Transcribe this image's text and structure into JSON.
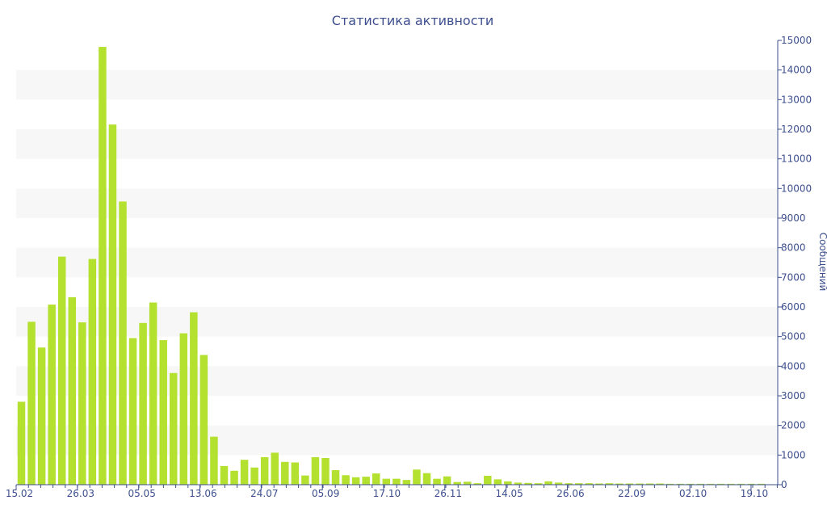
{
  "colors": {
    "bar": "#b4e02f",
    "band": "#f7f7f7",
    "axis": "#3d4f8e",
    "text": "#3d4f8e"
  },
  "chart_data": {
    "type": "bar",
    "title": "Статистика активности",
    "ylabel": "Сообщений",
    "xlabel": "",
    "ylim": [
      0,
      15000
    ],
    "y_ticks": [
      0,
      1000,
      2000,
      3000,
      4000,
      5000,
      6000,
      7000,
      8000,
      9000,
      10000,
      11000,
      12000,
      13000,
      14000,
      15000
    ],
    "y_axis_position": "right",
    "x_tick_labels": [
      "15.02",
      "26.03",
      "05.05",
      "13.06",
      "24.07",
      "05.09",
      "17.10",
      "26.11",
      "14.05",
      "26.06",
      "22.09",
      "02.10",
      "19.10"
    ],
    "alternating_bands": true,
    "values": [
      2800,
      5500,
      4630,
      6080,
      7700,
      6330,
      5480,
      7620,
      14780,
      12160,
      9560,
      4950,
      5460,
      6150,
      4880,
      3770,
      5110,
      5820,
      4380,
      1620,
      630,
      470,
      840,
      580,
      930,
      1080,
      770,
      750,
      310,
      930,
      900,
      490,
      320,
      250,
      270,
      380,
      200,
      200,
      160,
      510,
      390,
      200,
      280,
      90,
      100,
      50,
      300,
      180,
      110,
      70,
      60,
      50,
      110,
      70,
      50,
      50,
      50,
      40,
      50,
      40,
      40,
      40,
      40,
      40,
      30,
      30,
      30,
      30,
      30,
      30,
      30,
      30,
      30,
      30
    ]
  }
}
